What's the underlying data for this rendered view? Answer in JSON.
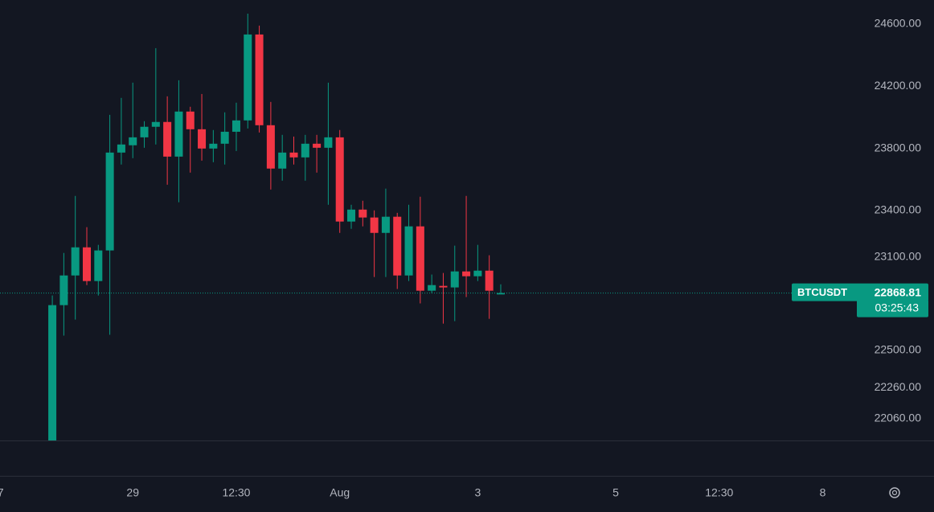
{
  "chart_data": {
    "type": "candlestick",
    "symbol": "BTCUSDT",
    "countdown": "03:25:43",
    "last_price": 22868.81,
    "up_color": "#089981",
    "down_color": "#f23645",
    "xlim": [
      -4.55,
      69.9
    ],
    "xticks": [
      {
        "value": -4.5,
        "label": "7"
      },
      {
        "value": 7,
        "label": "29"
      },
      {
        "value": 16,
        "label": "12:30"
      },
      {
        "value": 25,
        "label": "Aug"
      },
      {
        "value": 37,
        "label": "3"
      },
      {
        "value": 49,
        "label": "5"
      },
      {
        "value": 58,
        "label": "12:30"
      },
      {
        "value": 67,
        "label": "8"
      }
    ],
    "ylim": [
      21920,
      24755
    ],
    "yticks": [
      {
        "value": 24600,
        "label": "24600.00"
      },
      {
        "value": 24200,
        "label": "24200.00"
      },
      {
        "value": 23800,
        "label": "23800.00"
      },
      {
        "value": 23400,
        "label": "23400.00"
      },
      {
        "value": 23100,
        "label": "23100.00"
      },
      {
        "value": 22500,
        "label": "22500.00"
      },
      {
        "value": 22260,
        "label": "22260.00"
      },
      {
        "value": 22060,
        "label": "22060.00"
      }
    ],
    "open": [
      21880,
      22791,
      22982,
      23163,
      22946,
      23143,
      23773,
      23820,
      23871,
      23939,
      23970,
      23747,
      24037,
      23923,
      23799,
      23830,
      23907,
      23980,
      24533,
      23949,
      23670,
      23773,
      23742,
      23830,
      23804,
      23871,
      23329,
      23406,
      23355,
      23256,
      23360,
      22982,
      23298,
      22884,
      22915,
      22905,
      23008,
      22977,
      23013,
      22860
    ],
    "high": [
      22853,
      23127,
      23494,
      23293,
      23179,
      24016,
      24125,
      24223,
      23975,
      24445,
      24135,
      24238,
      24068,
      24150,
      23918,
      24032,
      24094,
      24667,
      24590,
      24099,
      23887,
      23876,
      23887,
      23887,
      24223,
      23918,
      23437,
      23463,
      23401,
      23541,
      23385,
      23437,
      23489,
      22988,
      22998,
      23174,
      23494,
      23179,
      23112,
      22925
    ],
    "low": [
      21850,
      22595,
      22698,
      22920,
      22853,
      22600,
      23696,
      23737,
      23804,
      23825,
      23566,
      23453,
      23644,
      23721,
      23711,
      23696,
      23783,
      23928,
      23902,
      23535,
      23592,
      23696,
      23592,
      23644,
      23437,
      23256,
      23282,
      23298,
      22972,
      22972,
      22895,
      22946,
      22802,
      22869,
      22672,
      22688,
      22843,
      22946,
      22703,
      22863
    ],
    "close": [
      22791,
      22982,
      23163,
      22946,
      23143,
      23773,
      23825,
      23871,
      23939,
      23970,
      23747,
      24037,
      23923,
      23799,
      23830,
      23907,
      23980,
      24533,
      23949,
      23670,
      23773,
      23742,
      23830,
      23804,
      23871,
      23329,
      23406,
      23355,
      23256,
      23360,
      22982,
      23298,
      22884,
      22920,
      22905,
      23008,
      22977,
      23013,
      22884,
      22868.81
    ]
  }
}
